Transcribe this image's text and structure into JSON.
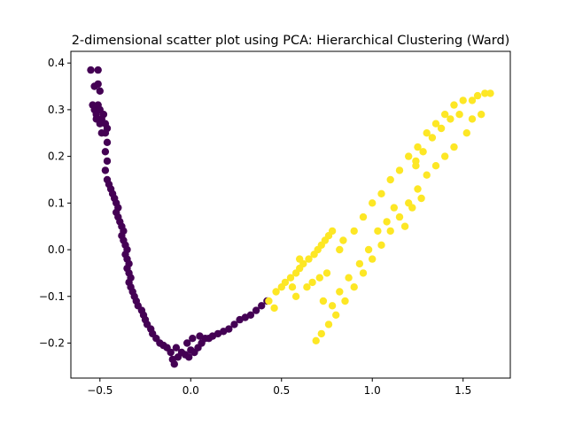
{
  "chart_data": {
    "type": "scatter",
    "title": "2-dimensional scatter plot using PCA: Hierarchical Clustering (Ward)",
    "xlabel": "",
    "ylabel": "",
    "xlim": [
      -0.66,
      1.76
    ],
    "ylim": [
      -0.275,
      0.425
    ],
    "x_ticks": [
      -0.5,
      0.0,
      0.5,
      1.0,
      1.5
    ],
    "x_tick_labels": [
      "−0.5",
      "0.0",
      "0.5",
      "1.0",
      "1.5"
    ],
    "y_ticks": [
      -0.2,
      -0.1,
      0.0,
      0.1,
      0.2,
      0.3,
      0.4
    ],
    "y_tick_labels": [
      "−0.2",
      "−0.1",
      "0.0",
      "0.1",
      "0.2",
      "0.3",
      "0.4"
    ],
    "grid": false,
    "legend": "none",
    "series": [
      {
        "color": "#440154",
        "points": [
          [
            -0.55,
            0.385
          ],
          [
            -0.51,
            0.385
          ],
          [
            -0.53,
            0.35
          ],
          [
            -0.51,
            0.355
          ],
          [
            -0.5,
            0.34
          ],
          [
            -0.54,
            0.31
          ],
          [
            -0.53,
            0.3
          ],
          [
            -0.52,
            0.29
          ],
          [
            -0.51,
            0.31
          ],
          [
            -0.5,
            0.3
          ],
          [
            -0.49,
            0.28
          ],
          [
            -0.48,
            0.29
          ],
          [
            -0.47,
            0.27
          ],
          [
            -0.46,
            0.26
          ],
          [
            -0.5,
            0.27
          ],
          [
            -0.52,
            0.28
          ],
          [
            -0.49,
            0.25
          ],
          [
            -0.47,
            0.25
          ],
          [
            -0.46,
            0.23
          ],
          [
            -0.47,
            0.21
          ],
          [
            -0.46,
            0.19
          ],
          [
            -0.47,
            0.17
          ],
          [
            -0.46,
            0.15
          ],
          [
            -0.45,
            0.14
          ],
          [
            -0.44,
            0.13
          ],
          [
            -0.43,
            0.12
          ],
          [
            -0.42,
            0.11
          ],
          [
            -0.41,
            0.1
          ],
          [
            -0.4,
            0.09
          ],
          [
            -0.41,
            0.08
          ],
          [
            -0.4,
            0.07
          ],
          [
            -0.39,
            0.06
          ],
          [
            -0.38,
            0.05
          ],
          [
            -0.37,
            0.04
          ],
          [
            -0.38,
            0.03
          ],
          [
            -0.37,
            0.02
          ],
          [
            -0.36,
            0.01
          ],
          [
            -0.35,
            0.0
          ],
          [
            -0.36,
            -0.01
          ],
          [
            -0.35,
            -0.02
          ],
          [
            -0.34,
            -0.03
          ],
          [
            -0.35,
            -0.04
          ],
          [
            -0.34,
            -0.05
          ],
          [
            -0.33,
            -0.06
          ],
          [
            -0.34,
            -0.07
          ],
          [
            -0.33,
            -0.08
          ],
          [
            -0.32,
            -0.09
          ],
          [
            -0.31,
            -0.1
          ],
          [
            -0.3,
            -0.11
          ],
          [
            -0.29,
            -0.12
          ],
          [
            -0.27,
            -0.13
          ],
          [
            -0.26,
            -0.14
          ],
          [
            -0.25,
            -0.15
          ],
          [
            -0.24,
            -0.16
          ],
          [
            -0.22,
            -0.17
          ],
          [
            -0.21,
            -0.18
          ],
          [
            -0.19,
            -0.19
          ],
          [
            -0.17,
            -0.2
          ],
          [
            -0.15,
            -0.205
          ],
          [
            -0.13,
            -0.21
          ],
          [
            -0.11,
            -0.22
          ],
          [
            -0.1,
            -0.235
          ],
          [
            -0.09,
            -0.245
          ],
          [
            -0.07,
            -0.23
          ],
          [
            -0.05,
            -0.22
          ],
          [
            -0.03,
            -0.225
          ],
          [
            -0.01,
            -0.23
          ],
          [
            0.0,
            -0.215
          ],
          [
            0.02,
            -0.22
          ],
          [
            0.04,
            -0.21
          ],
          [
            0.06,
            -0.2
          ],
          [
            0.08,
            -0.19
          ],
          [
            0.1,
            -0.19
          ],
          [
            0.12,
            -0.185
          ],
          [
            0.15,
            -0.18
          ],
          [
            0.18,
            -0.175
          ],
          [
            0.21,
            -0.17
          ],
          [
            0.24,
            -0.16
          ],
          [
            0.27,
            -0.15
          ],
          [
            0.3,
            -0.145
          ],
          [
            0.33,
            -0.14
          ],
          [
            0.36,
            -0.13
          ],
          [
            0.39,
            -0.12
          ],
          [
            0.42,
            -0.11
          ],
          [
            0.01,
            -0.19
          ],
          [
            -0.02,
            -0.2
          ],
          [
            -0.08,
            -0.21
          ],
          [
            0.05,
            -0.185
          ]
        ]
      },
      {
        "color": "#fde725",
        "points": [
          [
            0.43,
            -0.11
          ],
          [
            0.46,
            -0.125
          ],
          [
            0.47,
            -0.09
          ],
          [
            0.5,
            -0.08
          ],
          [
            0.52,
            -0.07
          ],
          [
            0.55,
            -0.06
          ],
          [
            0.58,
            -0.05
          ],
          [
            0.6,
            -0.04
          ],
          [
            0.62,
            -0.03
          ],
          [
            0.65,
            -0.02
          ],
          [
            0.68,
            -0.01
          ],
          [
            0.7,
            0.0
          ],
          [
            0.72,
            0.01
          ],
          [
            0.74,
            0.02
          ],
          [
            0.76,
            0.03
          ],
          [
            0.78,
            0.04
          ],
          [
            0.64,
            -0.08
          ],
          [
            0.67,
            -0.07
          ],
          [
            0.71,
            -0.06
          ],
          [
            0.75,
            -0.05
          ],
          [
            0.6,
            -0.02
          ],
          [
            0.56,
            -0.08
          ],
          [
            0.58,
            -0.1
          ],
          [
            0.82,
            0.0
          ],
          [
            0.9,
            0.04
          ],
          [
            0.95,
            0.07
          ],
          [
            1.0,
            0.1
          ],
          [
            1.05,
            0.12
          ],
          [
            1.1,
            0.15
          ],
          [
            1.15,
            0.17
          ],
          [
            1.2,
            0.2
          ],
          [
            1.25,
            0.22
          ],
          [
            1.3,
            0.25
          ],
          [
            1.35,
            0.27
          ],
          [
            1.4,
            0.29
          ],
          [
            1.45,
            0.31
          ],
          [
            1.5,
            0.32
          ],
          [
            1.55,
            0.32
          ],
          [
            1.58,
            0.33
          ],
          [
            1.62,
            0.335
          ],
          [
            1.65,
            0.335
          ],
          [
            1.24,
            0.19
          ],
          [
            1.28,
            0.21
          ],
          [
            1.33,
            0.24
          ],
          [
            1.38,
            0.26
          ],
          [
            1.43,
            0.28
          ],
          [
            1.48,
            0.29
          ],
          [
            0.69,
            -0.195
          ],
          [
            0.72,
            -0.18
          ],
          [
            0.76,
            -0.16
          ],
          [
            0.8,
            -0.14
          ],
          [
            0.85,
            -0.11
          ],
          [
            0.9,
            -0.08
          ],
          [
            0.95,
            -0.05
          ],
          [
            1.0,
            -0.02
          ],
          [
            1.05,
            0.01
          ],
          [
            1.1,
            0.04
          ],
          [
            1.15,
            0.07
          ],
          [
            1.2,
            0.1
          ],
          [
            1.25,
            0.13
          ],
          [
            1.3,
            0.16
          ],
          [
            1.35,
            0.18
          ],
          [
            1.4,
            0.2
          ],
          [
            1.45,
            0.22
          ],
          [
            1.52,
            0.25
          ],
          [
            1.55,
            0.28
          ],
          [
            1.6,
            0.29
          ],
          [
            0.82,
            -0.09
          ],
          [
            0.87,
            -0.06
          ],
          [
            0.93,
            -0.03
          ],
          [
            0.98,
            0.0
          ],
          [
            1.03,
            0.04
          ],
          [
            1.08,
            0.06
          ],
          [
            1.12,
            0.09
          ],
          [
            1.18,
            0.05
          ],
          [
            1.22,
            0.09
          ],
          [
            1.27,
            0.11
          ],
          [
            0.73,
            -0.11
          ],
          [
            0.78,
            -0.12
          ],
          [
            0.84,
            0.02
          ],
          [
            1.24,
            0.18
          ]
        ]
      }
    ]
  }
}
